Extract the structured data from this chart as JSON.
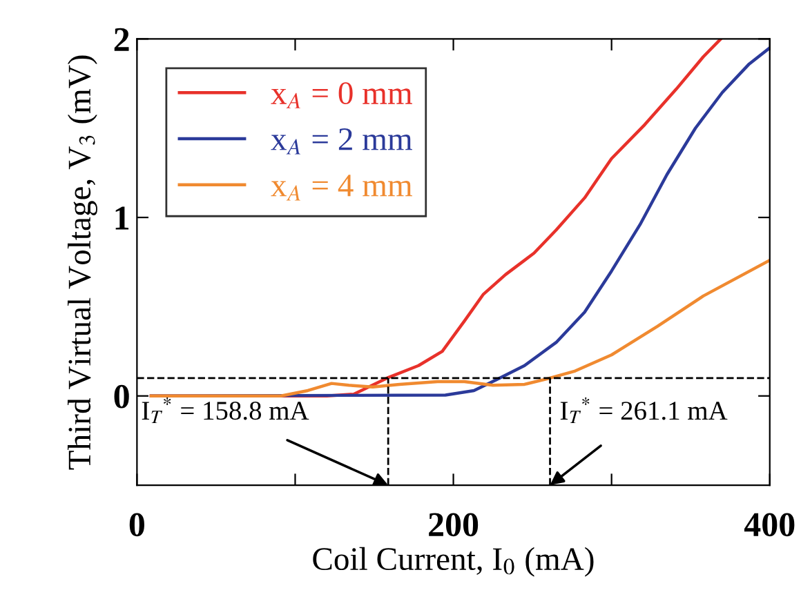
{
  "chart_data": {
    "type": "line",
    "xlabel": "Coil Current, I$_{0}$ (mA)",
    "ylabel": "Third Virtual Voltage, V$_{3}$ (mV)",
    "xlim": [
      0,
      400
    ],
    "ylim": [
      -0.5,
      2
    ],
    "xticks": [
      0,
      {
        "value": 100,
        "label": null
      },
      200,
      {
        "value": 300,
        "label": null
      },
      400
    ],
    "yticks": [
      0,
      1,
      2
    ],
    "grid": false,
    "legend": "top left",
    "line_style": "solid",
    "series": [
      {
        "name": "x$_{A}$ = 0 mm",
        "color": "#e8312a",
        "x": [
          9,
          120,
          137,
          158,
          178,
          193,
          207,
          219,
          233,
          251,
          265,
          283,
          300,
          321,
          341,
          358,
          369
        ],
        "values": [
          0,
          0,
          0.01,
          0.1,
          0.17,
          0.25,
          0.42,
          0.57,
          0.68,
          0.8,
          0.93,
          1.11,
          1.33,
          1.52,
          1.72,
          1.9,
          2.0
        ]
      },
      {
        "name": "x$_{A}$ = 2 mm",
        "color": "#2b3a9a",
        "x": [
          9,
          195,
          213,
          227,
          245,
          265,
          283,
          300,
          318,
          335,
          353,
          370,
          387,
          400
        ],
        "values": [
          0,
          0.005,
          0.03,
          0.09,
          0.17,
          0.3,
          0.47,
          0.7,
          0.96,
          1.24,
          1.5,
          1.7,
          1.86,
          1.95
        ]
      },
      {
        "name": "x$_{A}$ = 4 mm",
        "color": "#f08a30",
        "x": [
          9,
          91,
          108,
          123,
          134,
          149,
          166,
          190,
          207,
          225,
          245,
          259,
          277,
          300,
          329,
          358,
          400
        ],
        "values": [
          0,
          0,
          0.03,
          0.07,
          0.06,
          0.05,
          0.065,
          0.08,
          0.08,
          0.06,
          0.065,
          0.095,
          0.14,
          0.23,
          0.39,
          0.56,
          0.76
        ]
      }
    ],
    "ref_lines": [
      {
        "axis": "y",
        "value": 0.1,
        "line_style": "dashed",
        "color": "#000000"
      },
      {
        "axis": "x",
        "value": 158.8,
        "line_style": "dashed",
        "color": "#000000"
      },
      {
        "axis": "x",
        "value": 261.1,
        "line_style": "dashed",
        "color": "#000000"
      }
    ],
    "annotations": [
      {
        "text": "I$_{T}$$^{*}$ = 158.8 mA",
        "x": 158.8,
        "y": -0.5
      },
      {
        "text": "I$_{T}$$^{*}$ = 261.1 mA",
        "x": 261.1,
        "y": -0.5
      }
    ]
  }
}
